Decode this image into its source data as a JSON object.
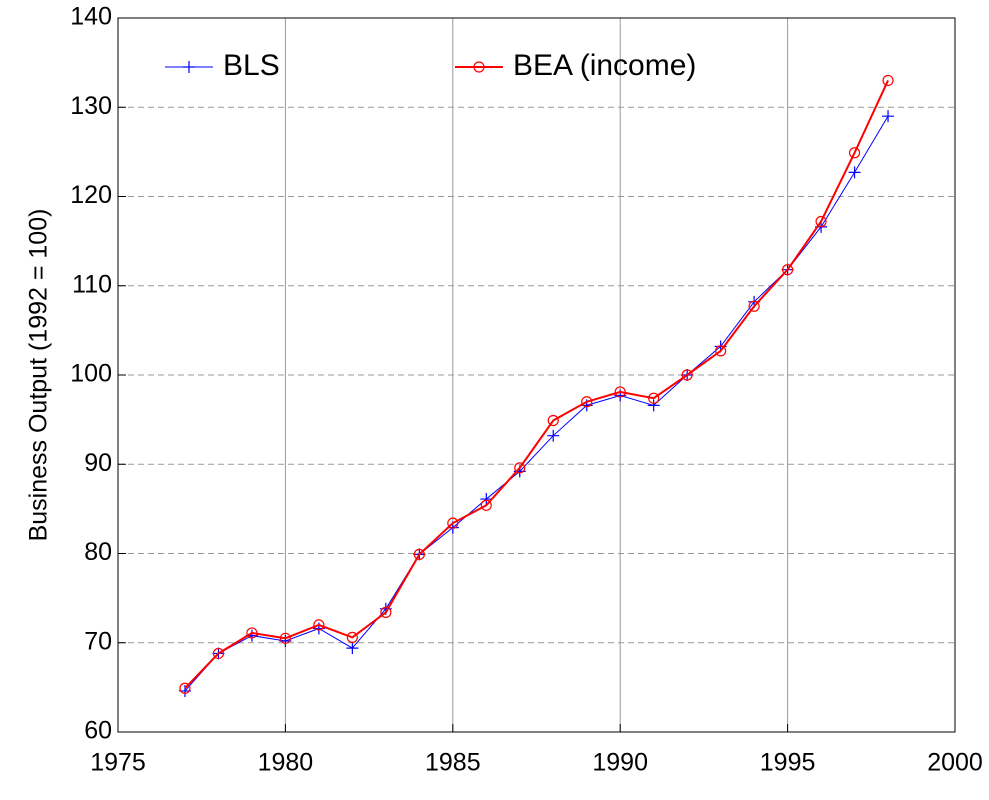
{
  "chart_data": {
    "type": "line",
    "y_label": "Business Output (1992 = 100)",
    "x": [
      1977,
      1978,
      1979,
      1980,
      1981,
      1982,
      1983,
      1984,
      1985,
      1986,
      1987,
      1988,
      1989,
      1990,
      1991,
      1992,
      1993,
      1994,
      1995,
      1996,
      1997,
      1998
    ],
    "series": [
      {
        "name": "BLS",
        "color": "#0000ff",
        "marker": "plus",
        "values": [
          64.6,
          68.8,
          70.8,
          70.2,
          71.6,
          69.4,
          73.8,
          79.9,
          82.9,
          86.1,
          89.2,
          93.2,
          96.6,
          97.7,
          96.6,
          100,
          103.2,
          108.2,
          111.8,
          116.6,
          122.7,
          129.0
        ]
      },
      {
        "name": "BEA (income)",
        "color": "#ff0000",
        "marker": "circle",
        "values": [
          64.9,
          68.8,
          71.1,
          70.5,
          72.0,
          70.6,
          73.4,
          79.9,
          83.4,
          85.4,
          89.6,
          94.9,
          97.0,
          98.1,
          97.4,
          100,
          102.7,
          107.7,
          111.8,
          117.2,
          124.9,
          133.0
        ]
      }
    ],
    "xlim": [
      1975,
      2000
    ],
    "xticks": [
      1975,
      1980,
      1985,
      1990,
      1995,
      2000
    ],
    "ylim": [
      60,
      140
    ],
    "yticks": [
      60,
      70,
      80,
      90,
      100,
      110,
      120,
      130,
      140
    ],
    "grid": true
  }
}
